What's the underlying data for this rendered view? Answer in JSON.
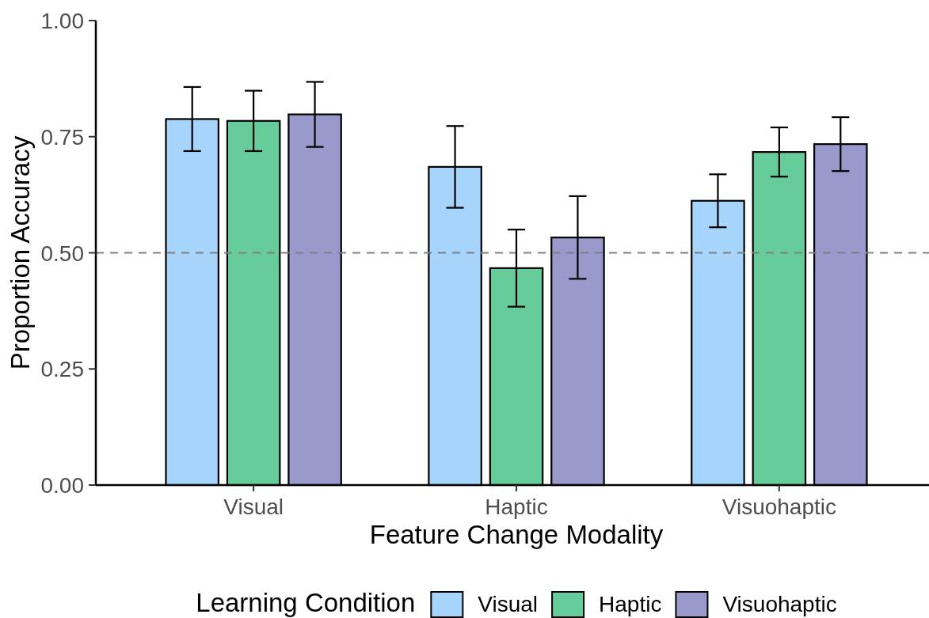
{
  "chart_data": {
    "type": "bar",
    "categories": [
      "Visual",
      "Haptic",
      "Visuohaptic"
    ],
    "xlabel": "Feature Change Modality",
    "ylabel": "Proportion Accuracy",
    "legend_title": "Learning Condition",
    "legend": "bottom",
    "ylim": [
      0,
      1
    ],
    "yticks": [
      {
        "value": 0,
        "label": "0.00"
      },
      {
        "value": 0.25,
        "label": "0.25"
      },
      {
        "value": 0.5,
        "label": "0.50"
      },
      {
        "value": 0.75,
        "label": "0.75"
      },
      {
        "value": 1,
        "label": "1.00"
      }
    ],
    "ref_lines": [
      {
        "axis": "y",
        "value": 0.5,
        "color": "#7f7f7f",
        "line_style": "dashed"
      }
    ],
    "series": [
      {
        "name": "Visual",
        "color": "#a6d4fa",
        "values": [
          0.788,
          0.685,
          0.612
        ],
        "errors": [
          0.069,
          0.088,
          0.057
        ]
      },
      {
        "name": "Haptic",
        "color": "#66cc99",
        "values": [
          0.784,
          0.467,
          0.717
        ],
        "errors": [
          0.065,
          0.083,
          0.053
        ]
      },
      {
        "name": "Visuohaptic",
        "color": "#9999cc",
        "values": [
          0.798,
          0.533,
          0.734
        ],
        "errors": [
          0.07,
          0.089,
          0.058
        ]
      }
    ]
  }
}
